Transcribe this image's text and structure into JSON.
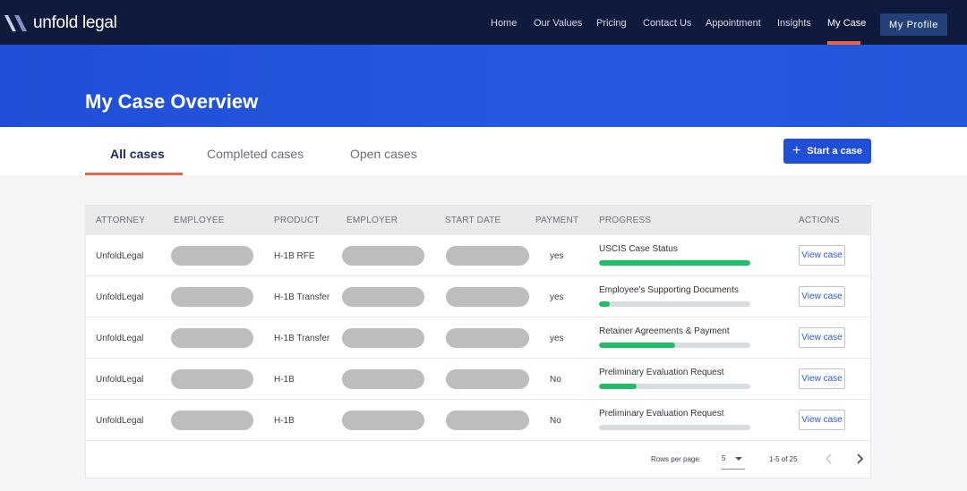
{
  "brand": {
    "name": "unfold legal"
  },
  "nav": {
    "links": [
      "Home",
      "Our Values",
      "Pricing",
      "Contact Us",
      "Appointment",
      "Insights",
      "My Case"
    ],
    "active": "My Case",
    "profile_label": "My Profile"
  },
  "hero": {
    "title": "My Case Overview"
  },
  "tabs": {
    "items": [
      "All cases",
      "Completed cases",
      "Open cases"
    ],
    "active": "All cases"
  },
  "actions": {
    "start_case_label": "Start a case",
    "start_case_icon": "plus-icon"
  },
  "table": {
    "headers": [
      "ATTORNEY",
      "EMPLOYEE",
      "PRODUCT",
      "EMPLOYER",
      "START DATE",
      "PAYMENT",
      "PROGRESS",
      "ACTIONS"
    ],
    "rows": [
      {
        "attorney": "UnfoldLegal",
        "product": "H-1B RFE",
        "payment": "yes",
        "progress_label": "USCIS Case Status",
        "progress": 1.0,
        "action": "View case"
      },
      {
        "attorney": "UnfoldLegal",
        "product": "H-1B Transfer",
        "payment": "yes",
        "progress_label": "Employee's Supporting Documents",
        "progress": 0.07,
        "action": "View case"
      },
      {
        "attorney": "UnfoldLegal",
        "product": "H-1B Transfer",
        "payment": "yes",
        "progress_label": "Retainer Agreements & Payment",
        "progress": 0.5,
        "action": "View case"
      },
      {
        "attorney": "UnfoldLegal",
        "product": "H-1B",
        "payment": "No",
        "progress_label": "Preliminary Evaluation Request",
        "progress": 0.25,
        "action": "View case"
      },
      {
        "attorney": "UnfoldLegal",
        "product": "H-1B",
        "payment": "No",
        "progress_label": "Preliminary Evaluation Request",
        "progress": 0.0,
        "action": "View case"
      }
    ],
    "redacted_fields": [
      "employee",
      "employer",
      "start_date"
    ]
  },
  "pagination": {
    "rows_per_page_label": "Rows per page:",
    "rows_per_page_value": "5",
    "range_text": "1-5 of 25"
  },
  "colors": {
    "nav_bg": "#0f1a3c",
    "hero_bg": "#2257dc",
    "accent": "#e8644a",
    "primary_button": "#1f4fd6",
    "progress_fill": "#1fbf6a",
    "progress_track": "#d9dde2",
    "redaction": "#bdbdbd"
  }
}
